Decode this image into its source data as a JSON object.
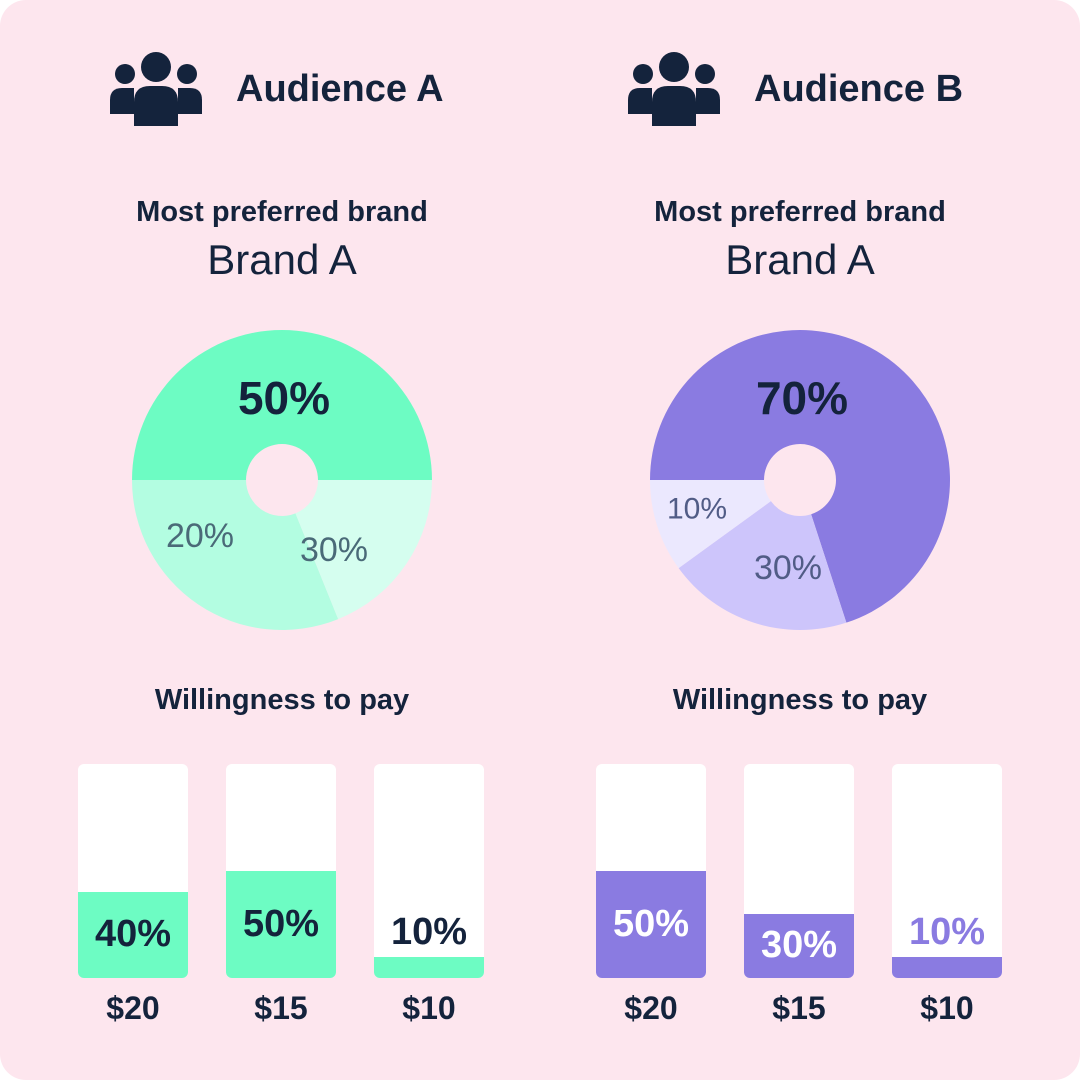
{
  "colors": {
    "background": "#fde6ee",
    "text": "#14233c",
    "green_dark": "#6dfcc3",
    "green_mid": "#b3fde1",
    "green_light": "#d5feef",
    "purple_dark": "#8a7be1",
    "purple_mid": "#cdc5fb",
    "purple_light": "#ebe8fe",
    "slice_label_muted": "#4a6a78",
    "slice_label_purple": "#515c86",
    "bar_white": "#ffffff"
  },
  "icon": "people-group-icon",
  "chart_data": [
    {
      "type": "pie",
      "audience": "Audience A",
      "title": "Most preferred brand",
      "subtitle": "Brand A",
      "slices": [
        {
          "label": "50%",
          "value": 50,
          "color": "#6dfcc3"
        },
        {
          "label": "30%",
          "value": 30,
          "color": "#b3fde1"
        },
        {
          "label": "20%",
          "value": 20,
          "color": "#d5feef"
        }
      ]
    },
    {
      "type": "bar",
      "audience": "Audience A",
      "title": "Willingness to pay",
      "categories": [
        "$20",
        "$15",
        "$10"
      ],
      "values": [
        40,
        50,
        10
      ],
      "value_labels": [
        "40%",
        "50%",
        "10%"
      ],
      "ylim": [
        0,
        100
      ],
      "color": "#6dfcc3"
    },
    {
      "type": "pie",
      "audience": "Audience B",
      "title": "Most preferred brand",
      "subtitle": "Brand A",
      "slices": [
        {
          "label": "70%",
          "value": 70,
          "color": "#8a7be1"
        },
        {
          "label": "30%",
          "value": 30,
          "color": "#cdc5fb"
        },
        {
          "label": "10%",
          "value": 10,
          "color": "#ebe8fe"
        }
      ]
    },
    {
      "type": "bar",
      "audience": "Audience B",
      "title": "Willingness to pay",
      "categories": [
        "$20",
        "$15",
        "$10"
      ],
      "values": [
        50,
        30,
        10
      ],
      "value_labels": [
        "50%",
        "30%",
        "10%"
      ],
      "ylim": [
        0,
        100
      ],
      "color": "#8a7be1"
    }
  ]
}
